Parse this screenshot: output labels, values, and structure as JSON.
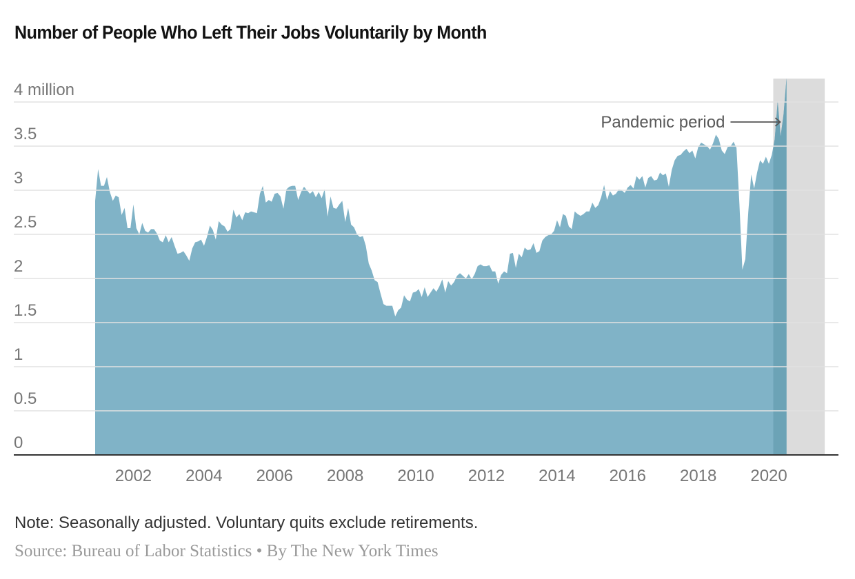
{
  "header": {
    "title": "Number of People Who Left Their Jobs Voluntarily by Month"
  },
  "footer": {
    "note": "Note: Seasonally adjusted. Voluntary quits exclude retirements.",
    "source": "Source: Bureau of Labor Statistics",
    "separator": "•",
    "credit": "By The New York Times"
  },
  "colors": {
    "area": "#80b3c7",
    "area_highlight": "#6ca3b6",
    "shade": "#dcdcdc",
    "grid": "#e2e2e2",
    "baseline": "#333333",
    "tick_text": "#767676"
  },
  "chart_data": {
    "type": "area",
    "title": "Number of People Who Left Their Jobs Voluntarily by Month",
    "xlabel": "",
    "ylabel": "",
    "unit": "million",
    "grid": true,
    "start": "2000-12",
    "frequency": "monthly",
    "ylim": [
      0,
      4.3
    ],
    "yticks": [
      {
        "value": 0,
        "label": "0"
      },
      {
        "value": 0.5,
        "label": "0.5"
      },
      {
        "value": 1,
        "label": "1"
      },
      {
        "value": 1.5,
        "label": "1.5"
      },
      {
        "value": 2,
        "label": "2"
      },
      {
        "value": 2.5,
        "label": "2.5"
      },
      {
        "value": 3,
        "label": "3"
      },
      {
        "value": 3.5,
        "label": "3.5"
      },
      {
        "value": 4,
        "label": "4 million"
      }
    ],
    "xticks": [
      {
        "year": 2002,
        "label": "2002"
      },
      {
        "year": 2004,
        "label": "2004"
      },
      {
        "year": 2006,
        "label": "2006"
      },
      {
        "year": 2008,
        "label": "2008"
      },
      {
        "year": 2010,
        "label": "2010"
      },
      {
        "year": 2012,
        "label": "2012"
      },
      {
        "year": 2014,
        "label": "2014"
      },
      {
        "year": 2016,
        "label": "2016"
      },
      {
        "year": 2018,
        "label": "2018"
      },
      {
        "year": 2020,
        "label": "2020"
      }
    ],
    "annotation": {
      "label": "Pandemic period",
      "start": "2020-03",
      "end": "2021-08"
    },
    "values": [
      2.88,
      3.24,
      3.05,
      3.05,
      3.15,
      2.98,
      2.88,
      2.94,
      2.92,
      2.72,
      2.8,
      2.57,
      2.57,
      2.84,
      2.57,
      2.5,
      2.63,
      2.54,
      2.52,
      2.56,
      2.56,
      2.51,
      2.43,
      2.41,
      2.49,
      2.41,
      2.47,
      2.37,
      2.28,
      2.29,
      2.31,
      2.26,
      2.2,
      2.34,
      2.41,
      2.42,
      2.44,
      2.37,
      2.47,
      2.6,
      2.55,
      2.44,
      2.65,
      2.61,
      2.59,
      2.53,
      2.56,
      2.78,
      2.69,
      2.73,
      2.66,
      2.75,
      2.74,
      2.76,
      2.75,
      2.74,
      2.96,
      3.05,
      2.86,
      2.89,
      2.87,
      2.96,
      2.97,
      2.93,
      2.79,
      3.01,
      3.04,
      3.05,
      3.05,
      2.89,
      2.98,
      3.04,
      3.0,
      2.96,
      2.99,
      2.92,
      2.98,
      2.91,
      3.01,
      2.7,
      2.93,
      2.8,
      2.79,
      2.84,
      2.88,
      2.64,
      2.8,
      2.61,
      2.58,
      2.5,
      2.47,
      2.48,
      2.37,
      2.17,
      2.09,
      1.98,
      1.96,
      1.83,
      1.71,
      1.69,
      1.69,
      1.69,
      1.57,
      1.64,
      1.67,
      1.81,
      1.76,
      1.74,
      1.84,
      1.85,
      1.88,
      1.79,
      1.9,
      1.79,
      1.84,
      1.89,
      1.85,
      1.91,
      1.99,
      1.84,
      1.97,
      1.92,
      1.96,
      2.03,
      2.06,
      2.03,
      2.0,
      2.05,
      1.99,
      2.05,
      2.14,
      2.16,
      2.14,
      2.14,
      2.15,
      2.08,
      2.08,
      1.94,
      2.04,
      2.08,
      2.06,
      2.28,
      2.29,
      2.12,
      2.28,
      2.24,
      2.35,
      2.32,
      2.33,
      2.4,
      2.29,
      2.31,
      2.43,
      2.47,
      2.49,
      2.5,
      2.54,
      2.66,
      2.58,
      2.73,
      2.71,
      2.59,
      2.56,
      2.76,
      2.73,
      2.71,
      2.73,
      2.76,
      2.76,
      2.86,
      2.8,
      2.83,
      2.92,
      3.06,
      2.89,
      2.99,
      2.94,
      2.96,
      3.01,
      3.0,
      2.97,
      3.03,
      3.06,
      3.02,
      3.16,
      3.12,
      3.16,
      3.03,
      3.14,
      3.16,
      3.11,
      3.12,
      3.2,
      3.17,
      3.19,
      3.04,
      3.23,
      3.34,
      3.39,
      3.4,
      3.44,
      3.47,
      3.42,
      3.45,
      3.36,
      3.49,
      3.54,
      3.52,
      3.5,
      3.46,
      3.53,
      3.63,
      3.58,
      3.45,
      3.41,
      3.49,
      3.5,
      3.55,
      3.48,
      2.84,
      2.1,
      2.22,
      2.75,
      3.18,
      3.02,
      3.2,
      3.34,
      3.3,
      3.38,
      3.3,
      3.4,
      3.58,
      4.01,
      3.61,
      3.86,
      4.27
    ]
  }
}
